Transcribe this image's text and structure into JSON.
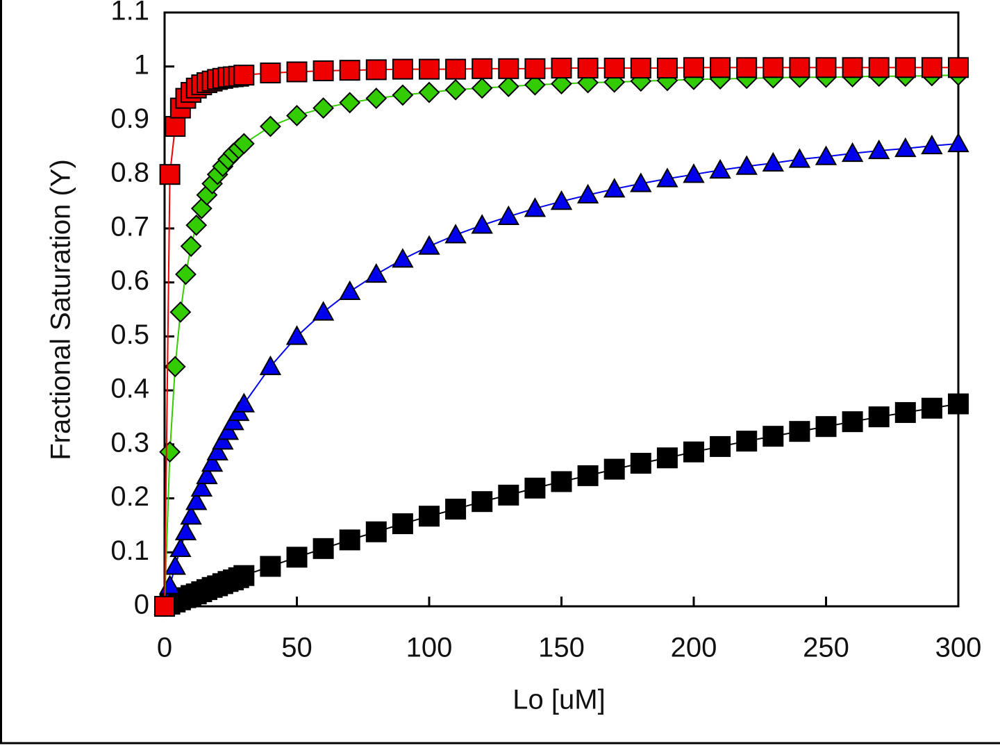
{
  "chart_data": {
    "type": "scatter-line",
    "x_label": "Lo [uM]",
    "y_label": "Fractional Saturation (Y)",
    "x": [
      0,
      2,
      4,
      6,
      8,
      10,
      12,
      14,
      16,
      18,
      20,
      22,
      24,
      26,
      28,
      30,
      40,
      50,
      60,
      70,
      80,
      90,
      100,
      110,
      120,
      130,
      140,
      150,
      160,
      170,
      180,
      190,
      200,
      210,
      220,
      230,
      240,
      250,
      260,
      270,
      280,
      290,
      300
    ],
    "series": [
      {
        "color": "#000000",
        "marker": "square",
        "values": [
          0,
          0.004,
          0.008,
          0.012,
          0.016,
          0.02,
          0.023,
          0.027,
          0.031,
          0.035,
          0.038,
          0.042,
          0.046,
          0.049,
          0.053,
          0.057,
          0.074,
          0.091,
          0.107,
          0.123,
          0.138,
          0.153,
          0.167,
          0.18,
          0.194,
          0.206,
          0.219,
          0.231,
          0.242,
          0.254,
          0.265,
          0.275,
          0.286,
          0.296,
          0.306,
          0.315,
          0.324,
          0.333,
          0.342,
          0.351,
          0.359,
          0.367,
          0.375
        ]
      },
      {
        "color": "#0000ee",
        "marker": "triangle",
        "values": [
          0,
          0.038,
          0.074,
          0.107,
          0.138,
          0.167,
          0.194,
          0.219,
          0.242,
          0.265,
          0.286,
          0.306,
          0.324,
          0.342,
          0.359,
          0.375,
          0.444,
          0.5,
          0.545,
          0.583,
          0.615,
          0.643,
          0.667,
          0.688,
          0.706,
          0.722,
          0.737,
          0.75,
          0.762,
          0.773,
          0.783,
          0.792,
          0.8,
          0.808,
          0.815,
          0.821,
          0.828,
          0.833,
          0.839,
          0.844,
          0.848,
          0.853,
          0.857
        ]
      },
      {
        "color": "#33cc00",
        "marker": "diamond",
        "values": [
          0,
          0.286,
          0.444,
          0.545,
          0.615,
          0.667,
          0.706,
          0.737,
          0.762,
          0.783,
          0.8,
          0.815,
          0.828,
          0.839,
          0.848,
          0.857,
          0.889,
          0.909,
          0.923,
          0.933,
          0.941,
          0.947,
          0.952,
          0.957,
          0.96,
          0.963,
          0.966,
          0.968,
          0.97,
          0.971,
          0.973,
          0.974,
          0.976,
          0.977,
          0.978,
          0.979,
          0.98,
          0.98,
          0.981,
          0.982,
          0.982,
          0.983,
          0.984
        ]
      },
      {
        "color": "#ee0000",
        "marker": "square",
        "values": [
          0,
          0.8,
          0.889,
          0.923,
          0.941,
          0.952,
          0.96,
          0.966,
          0.97,
          0.973,
          0.976,
          0.978,
          0.98,
          0.981,
          0.982,
          0.984,
          0.988,
          0.99,
          0.992,
          0.993,
          0.994,
          0.995,
          0.995,
          0.995,
          0.996,
          0.996,
          0.996,
          0.997,
          0.997,
          0.997,
          0.997,
          0.997,
          0.998,
          0.998,
          0.998,
          0.998,
          0.998,
          0.998,
          0.998,
          0.998,
          0.998,
          0.998,
          0.998
        ]
      }
    ],
    "xlim": [
      0,
      300
    ],
    "xticks": [
      0,
      50,
      100,
      150,
      200,
      250,
      300
    ],
    "ylim": [
      0,
      1.1
    ],
    "yticks": [
      0,
      0.1,
      0.2,
      0.3,
      0.4,
      0.5,
      0.6,
      0.7,
      0.8,
      0.9,
      1,
      1.1
    ],
    "grid": false
  }
}
